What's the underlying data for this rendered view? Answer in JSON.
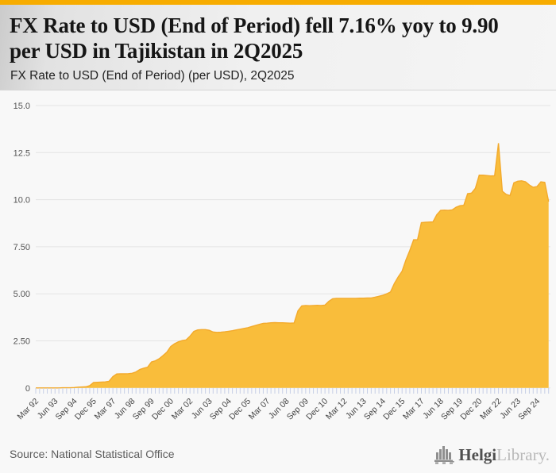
{
  "colors": {
    "accent_bar": "#F7AC00",
    "area_fill": "#F9BD3B",
    "area_line": "#F3AA2C",
    "gridline": "#E4E4E4",
    "axis_tick": "#C7CFE6",
    "y_label": "#555555",
    "x_label": "#444444"
  },
  "header": {
    "title_lines": [
      "FX Rate to USD (End of Period) fell 7.16% yoy to 9.90",
      "per USD in Tajikistan in 2Q2025"
    ],
    "subtitle": "FX Rate to USD (End of Period) (per USD), 2Q2025"
  },
  "chart_data": {
    "type": "area",
    "title": "FX Rate to USD (End of Period) (per USD), 2Q2025",
    "country": "Tajikistan",
    "unit": "per USD",
    "frequency": "quarterly",
    "x_start": "1992Q1",
    "x_end": "2025Q2",
    "ylim": [
      0,
      15
    ],
    "grid": true,
    "y_ticks": [
      {
        "label": "15.0",
        "value": 15
      },
      {
        "label": "12.5",
        "value": 12.5
      },
      {
        "label": "10.0",
        "value": 10
      },
      {
        "label": "7.50",
        "value": 7.5
      },
      {
        "label": "5.00",
        "value": 5
      },
      {
        "label": "2.50",
        "value": 2.5
      },
      {
        "label": "0",
        "value": 0
      }
    ],
    "x_tick_labels": [
      "Mar 92",
      "Jun 93",
      "Sep 94",
      "Dec 95",
      "Mar 97",
      "Jun 98",
      "Sep 99",
      "Dec 00",
      "Mar 02",
      "Jun 03",
      "Sep 04",
      "Dec 05",
      "Mar 07",
      "Jun 08",
      "Sep 09",
      "Dec 10",
      "Mar 12",
      "Jun 13",
      "Sep 14",
      "Dec 15",
      "Mar 17",
      "Jun 18",
      "Sep 19",
      "Dec 20",
      "Mar 22",
      "Jun 23",
      "Sep 24"
    ],
    "x_tick_label_step": 5,
    "values": [
      0.0,
      0.0,
      0.0,
      0.0,
      0.0,
      0.0,
      0.0,
      0.01,
      0.01,
      0.01,
      0.02,
      0.04,
      0.05,
      0.06,
      0.12,
      0.29,
      0.3,
      0.31,
      0.32,
      0.35,
      0.6,
      0.74,
      0.75,
      0.75,
      0.76,
      0.78,
      0.85,
      0.98,
      1.05,
      1.1,
      1.38,
      1.44,
      1.55,
      1.72,
      1.9,
      2.2,
      2.35,
      2.45,
      2.52,
      2.55,
      2.75,
      3.0,
      3.08,
      3.1,
      3.1,
      3.06,
      2.97,
      2.95,
      2.96,
      2.98,
      3.01,
      3.04,
      3.08,
      3.12,
      3.16,
      3.2,
      3.26,
      3.32,
      3.38,
      3.43,
      3.44,
      3.46,
      3.47,
      3.46,
      3.46,
      3.45,
      3.44,
      3.45,
      4.1,
      4.36,
      4.38,
      4.37,
      4.38,
      4.39,
      4.38,
      4.4,
      4.6,
      4.74,
      4.76,
      4.76,
      4.76,
      4.76,
      4.76,
      4.76,
      4.77,
      4.77,
      4.78,
      4.78,
      4.82,
      4.87,
      4.92,
      5.0,
      5.1,
      5.55,
      5.9,
      6.2,
      6.8,
      7.3,
      7.87,
      7.87,
      8.78,
      8.8,
      8.81,
      8.82,
      9.2,
      9.43,
      9.44,
      9.43,
      9.46,
      9.6,
      9.68,
      9.7,
      10.32,
      10.35,
      10.6,
      11.3,
      11.3,
      11.28,
      11.26,
      11.27,
      13.0,
      10.45,
      10.28,
      10.22,
      10.9,
      10.98,
      11.0,
      10.95,
      10.78,
      10.66,
      10.7,
      10.95,
      10.92,
      9.9
    ],
    "last_value": 9.9,
    "yoy_change_pct": -7.16
  },
  "footer": {
    "source": "Source: National Statistical Office",
    "logo_bold": "Helgi",
    "logo_light": "Library."
  }
}
